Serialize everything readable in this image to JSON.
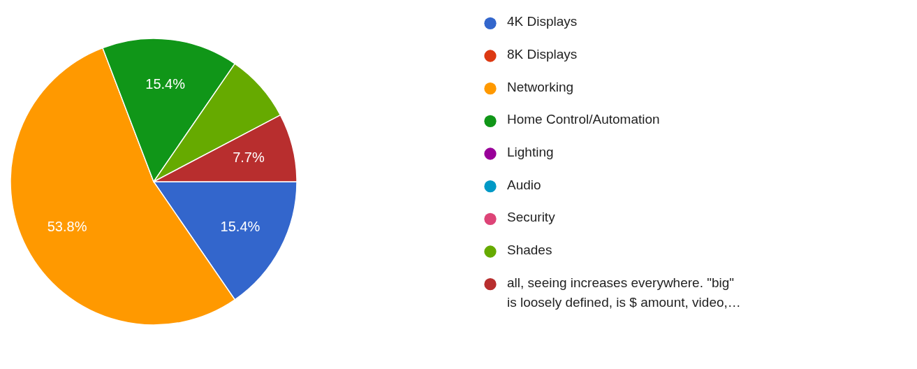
{
  "chart_data": {
    "type": "pie",
    "categories": [
      "4K Displays",
      "8K Displays",
      "Networking",
      "Home Control/Automation",
      "Lighting",
      "Audio",
      "Security",
      "Shades",
      "all, seeing increases everywhere. \"big\" is loosely defined, is $ amount, video,…"
    ],
    "values": [
      15.4,
      0,
      53.8,
      15.4,
      0,
      0,
      0,
      7.7,
      7.7
    ],
    "value_labels": [
      "15.4%",
      null,
      "53.8%",
      "15.4%",
      null,
      null,
      null,
      null,
      "7.7%"
    ],
    "colors": [
      "#3366cc",
      "#dc3912",
      "#ff9900",
      "#109618",
      "#990099",
      "#0099c6",
      "#dd4477",
      "#66aa00",
      "#b82e2e"
    ],
    "legend": "right"
  }
}
